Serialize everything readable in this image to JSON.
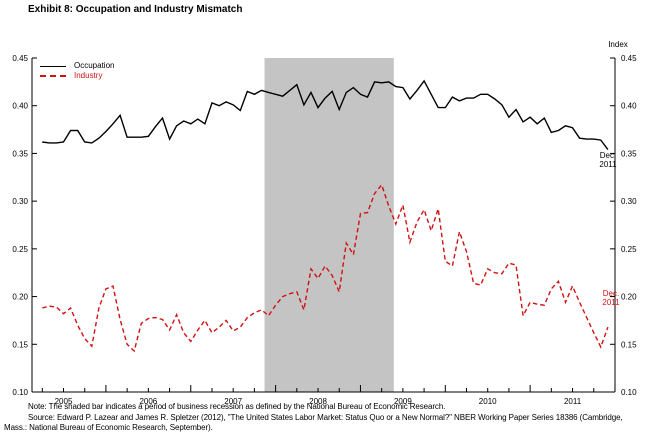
{
  "title": "Exhibit 8: Occupation and Industry Mismatch",
  "legend": {
    "occupation": "Occupation",
    "industry": "Industry"
  },
  "right_axis_title": "Index",
  "annotations": {
    "occupation_end": {
      "line1": "Dec.",
      "line2": "2011"
    },
    "industry_end": {
      "line1": "Dec.",
      "line2": "2011"
    }
  },
  "notes": {
    "line1": "Note: The shaded bar indicates a period of business recession as defined by the National Bureau of Economic Research.",
    "line2": "Source: Edward P. Lazear and James R. Spletzer (2012), \"The United States Labor Market:  Status Quo or a New Normal?\" NBER Working Paper Series 18386 (Cambridge,",
    "line3": "Mass.:  National Bureau of Economic Research, September)."
  },
  "colors": {
    "occupation": "#000000",
    "industry": "#d01212",
    "recession_band": "#c4c4c4",
    "axis": "#000000"
  },
  "chart_data": {
    "type": "line",
    "frequency": "monthly",
    "x_start_month": "2005-04",
    "x_end_month": "2011-12",
    "ylim": [
      0.1,
      0.45
    ],
    "y_ticks": [
      "0.45",
      "0.40",
      "0.35",
      "0.30",
      "0.25",
      "0.20",
      "0.15",
      "0.10"
    ],
    "x_year_labels": [
      "2005",
      "2006",
      "2007",
      "2008",
      "2009",
      "2010",
      "2011"
    ],
    "recession_band": {
      "start": "2007-12",
      "end": "2009-06"
    },
    "grid": false,
    "legend_position": "top-left",
    "series": [
      {
        "name": "Occupation",
        "style": "solid",
        "color": "#000000",
        "values": [
          0.362,
          0.361,
          0.361,
          0.362,
          0.374,
          0.374,
          0.362,
          0.361,
          0.366,
          0.373,
          0.381,
          0.39,
          0.367,
          0.367,
          0.367,
          0.368,
          0.378,
          0.387,
          0.365,
          0.379,
          0.384,
          0.381,
          0.386,
          0.381,
          0.403,
          0.4,
          0.404,
          0.401,
          0.395,
          0.415,
          0.412,
          0.416,
          0.414,
          0.412,
          0.41,
          0.416,
          0.422,
          0.401,
          0.414,
          0.398,
          0.408,
          0.415,
          0.396,
          0.414,
          0.419,
          0.412,
          0.409,
          0.425,
          0.424,
          0.425,
          0.42,
          0.419,
          0.407,
          0.416,
          0.426,
          0.412,
          0.398,
          0.398,
          0.409,
          0.405,
          0.408,
          0.408,
          0.412,
          0.412,
          0.407,
          0.401,
          0.388,
          0.396,
          0.383,
          0.388,
          0.381,
          0.387,
          0.372,
          0.374,
          0.379,
          0.377,
          0.366,
          0.365,
          0.365,
          0.364,
          0.354
        ]
      },
      {
        "name": "Industry",
        "style": "dashed",
        "color": "#d01212",
        "values": [
          0.188,
          0.19,
          0.189,
          0.182,
          0.188,
          0.17,
          0.156,
          0.148,
          0.188,
          0.208,
          0.211,
          0.176,
          0.15,
          0.143,
          0.172,
          0.177,
          0.178,
          0.176,
          0.165,
          0.181,
          0.162,
          0.153,
          0.165,
          0.175,
          0.162,
          0.168,
          0.175,
          0.164,
          0.168,
          0.178,
          0.183,
          0.186,
          0.18,
          0.191,
          0.2,
          0.203,
          0.205,
          0.186,
          0.229,
          0.219,
          0.232,
          0.222,
          0.205,
          0.256,
          0.244,
          0.287,
          0.288,
          0.308,
          0.317,
          0.295,
          0.276,
          0.296,
          0.257,
          0.278,
          0.291,
          0.269,
          0.292,
          0.237,
          0.232,
          0.268,
          0.247,
          0.214,
          0.212,
          0.229,
          0.225,
          0.224,
          0.235,
          0.233,
          0.18,
          0.194,
          0.192,
          0.191,
          0.208,
          0.216,
          0.194,
          0.211,
          0.194,
          0.178,
          0.162,
          0.147,
          0.168
        ]
      }
    ]
  }
}
